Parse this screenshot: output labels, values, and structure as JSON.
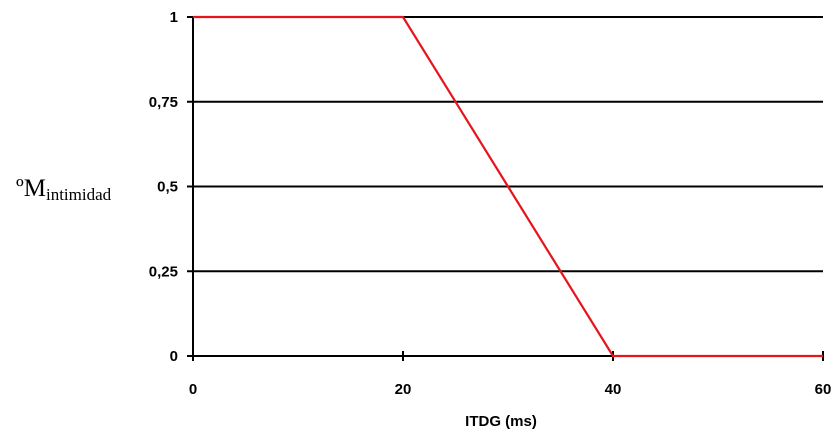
{
  "chart_data": {
    "type": "line",
    "x": [
      0,
      20,
      40,
      60
    ],
    "series": [
      {
        "values": [
          1,
          1,
          0,
          0
        ],
        "color": "#e8141c"
      }
    ],
    "xlabel": "ITDG (ms)",
    "ylabel": {
      "main": "ºM",
      "subscript": "intimidad"
    },
    "xlim": [
      0,
      60
    ],
    "ylim": [
      0,
      1
    ],
    "xticks": [
      0,
      20,
      40,
      60
    ],
    "xtick_labels": [
      "0",
      "20",
      "40",
      "60"
    ],
    "yticks": [
      0,
      0.25,
      0.5,
      0.75,
      1
    ],
    "ytick_labels": [
      "0",
      "0,25",
      "0,5",
      "0,75",
      "1"
    ],
    "grid": "horizontal",
    "legend": "none"
  }
}
